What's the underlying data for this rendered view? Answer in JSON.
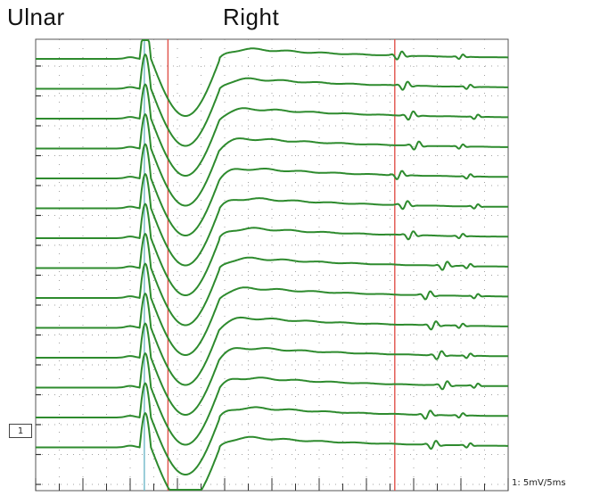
{
  "header": {
    "left_title": "Ulnar",
    "right_title": "Right"
  },
  "channel_marker": "1",
  "scale_label": "1: 5mV/5ms",
  "colors": {
    "trace": "#2e8b2e",
    "cursor": "#e0524a",
    "baseline_cursor": "#6fb8c8",
    "grid": "#7a7a7a",
    "frame": "#555555"
  },
  "chart_data": {
    "type": "line",
    "title": "",
    "xlabel": "",
    "ylabel": "",
    "sweep_count": 14,
    "sweep_divisions": 10,
    "sensitivity": "5mV",
    "sweep_speed": "5ms",
    "trace_shape": {
      "pre_stimulus_baseline": 0.0,
      "stimulus_artifact_peak_mV": 12,
      "m_wave_negative_peak_mV": -20,
      "recovery_peak_mV": 4.5,
      "late_response_present": true
    },
    "cursors": [
      {
        "name": "stimulus",
        "x_ms": 11.5
      },
      {
        "name": "m-wave",
        "x_ms": 14
      },
      {
        "name": "f-wave",
        "x_ms": 38
      }
    ],
    "grid": true
  }
}
